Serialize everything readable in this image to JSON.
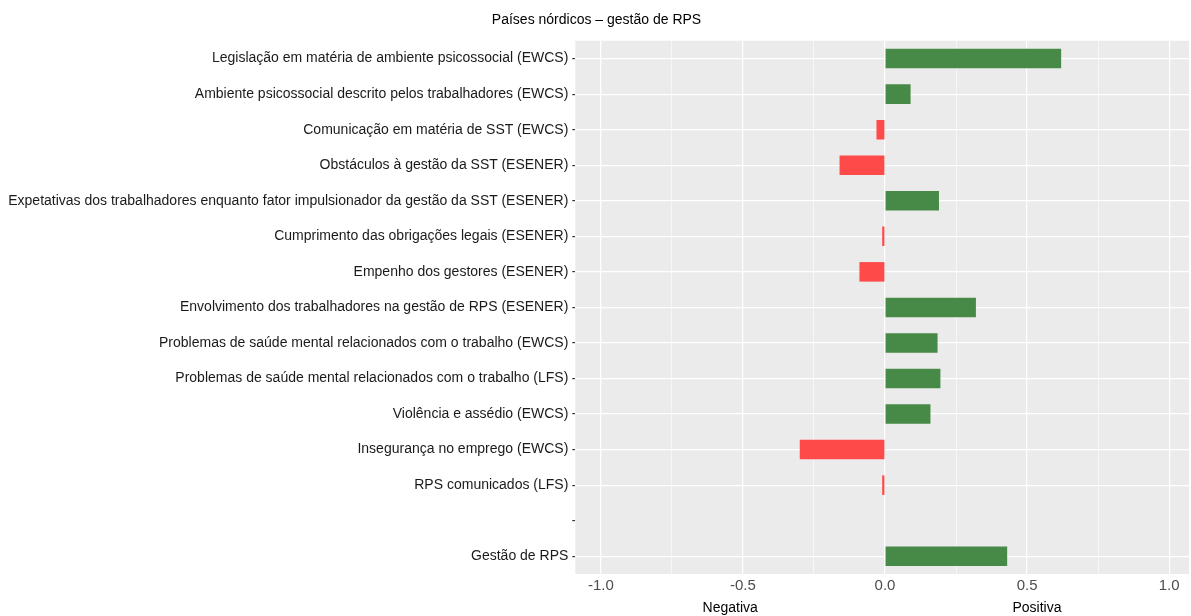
{
  "chart_data": {
    "type": "bar",
    "orientation": "horizontal",
    "title": "Países nórdicos – gestão de RPS",
    "categories": [
      "Legislação em matéria de ambiente psicossocial (EWCS)",
      "Ambiente psicossocial descrito pelos trabalhadores (EWCS)",
      "Comunicação em matéria de SST (EWCS)",
      "Obstáculos à gestão da SST (ESENER)",
      "Expetativas dos trabalhadores enquanto fator impulsionador da gestão da SST (ESENER)",
      "Cumprimento das obrigações legais (ESENER)",
      "Empenho dos gestores (ESENER)",
      "Envolvimento dos trabalhadores na gestão de RPS (ESENER)",
      "Problemas de saúde mental relacionados com o trabalho (EWCS)",
      "Problemas de saúde mental relacionados com o trabalho (LFS)",
      "Violência e assédio (EWCS)",
      "Insegurança no emprego (EWCS)",
      "RPS comunicados (LFS)",
      null,
      "Gestão de RPS"
    ],
    "values": [
      0.62,
      0.09,
      -0.03,
      -0.16,
      0.19,
      -0.01,
      -0.09,
      0.32,
      0.185,
      0.195,
      0.16,
      -0.3,
      -0.01,
      null,
      0.43
    ],
    "colors": [
      "#478a47",
      "#478a47",
      "#ff4a4a",
      "#ff4a4a",
      "#478a47",
      "#ff4a4a",
      "#ff4a4a",
      "#478a47",
      "#478a47",
      "#478a47",
      "#478a47",
      "#ff4a4a",
      "#ff4a4a",
      "#ff4a4a",
      "#478a47"
    ],
    "xlim": [
      -1.09,
      1.07
    ],
    "xticks": [
      {
        "value": -1,
        "label": "-1.0"
      },
      {
        "value": -0.75,
        "label": null
      },
      {
        "value": -0.5,
        "label": "-0.5"
      },
      {
        "value": -0.25,
        "label": null
      },
      {
        "value": 0,
        "label": "0.0"
      },
      {
        "value": 0.25,
        "label": null
      },
      {
        "value": 0.5,
        "label": "0.5"
      },
      {
        "value": 0.75,
        "label": null
      },
      {
        "value": 1,
        "label": "1.0"
      }
    ],
    "grid": true,
    "legend": false,
    "annotations": [
      "Negativa",
      "Positiva"
    ]
  }
}
